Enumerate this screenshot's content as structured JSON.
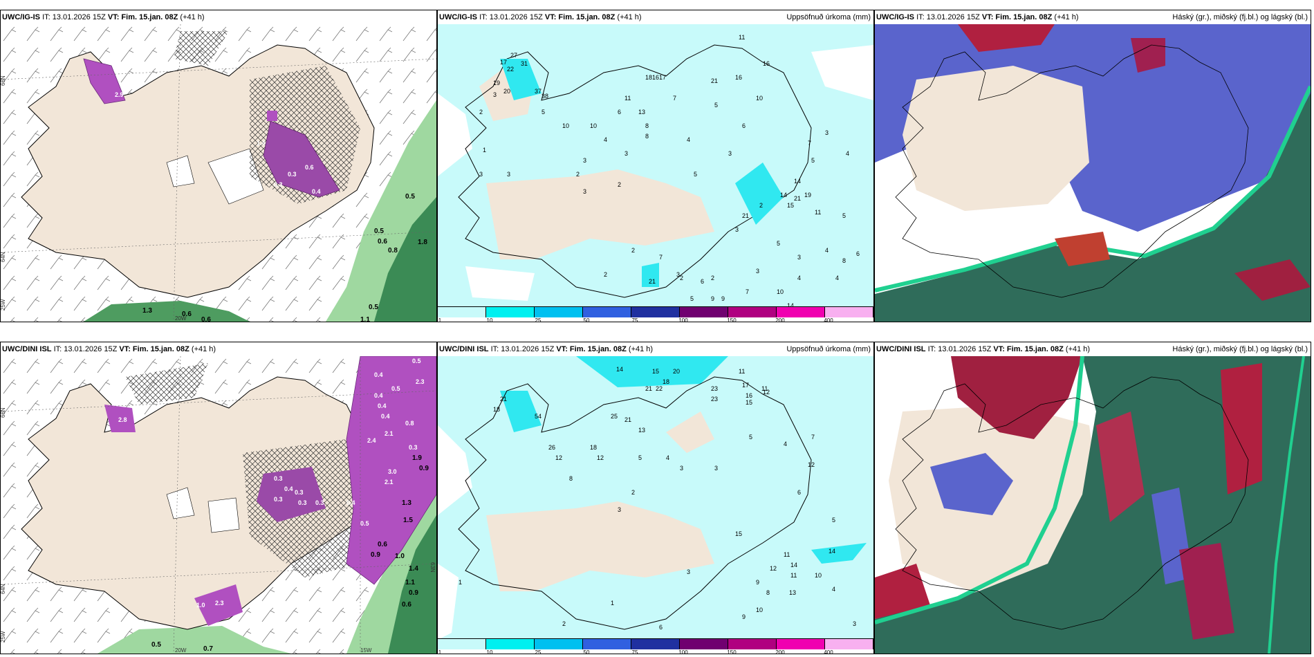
{
  "panels": [
    {
      "model": "UWC/IG-IS",
      "it": "IT: 13.01.2026 15Z",
      "vt_label": "VT:",
      "vt": "Fim. 15.jan. 08Z",
      "lead": "(+41 h)",
      "right_title": ""
    },
    {
      "model": "UWC/IG-IS",
      "it": "IT: 13.01.2026 15Z",
      "vt_label": "VT:",
      "vt": "Fim. 15.jan. 08Z",
      "lead": "(+41 h)",
      "right_title": "Uppsöfnuð úrkoma (mm)"
    },
    {
      "model": "UWC/IG-IS",
      "it": "IT: 13.01.2026 15Z",
      "vt_label": "VT:",
      "vt": "Fim. 15.jan. 08Z",
      "lead": "(+41 h)",
      "right_title": "Háský (gr.), miðský (fj.bl.) og lágský (bl.)"
    },
    {
      "model": "UWC/DINI ISL",
      "it": "IT: 13.01.2026 15Z",
      "vt_label": "VT:",
      "vt": "Fim. 15.jan. 08Z",
      "lead": "(+41 h)",
      "right_title": ""
    },
    {
      "model": "UWC/DINI ISL",
      "it": "IT: 13.01.2026 15Z",
      "vt_label": "VT:",
      "vt": "Fim. 15.jan. 08Z",
      "lead": "(+41 h)",
      "right_title": "Uppsöfnuð úrkoma (mm)"
    },
    {
      "model": "UWC/DINI ISL",
      "it": "IT: 13.01.2026 15Z",
      "vt_label": "VT:",
      "vt": "Fim. 15.jan. 08Z",
      "lead": "(+41 h)",
      "right_title": "Háský (gr.), miðský (fj.bl.) og lágský (bl.)"
    }
  ],
  "colorbar": {
    "levels": [
      "1",
      "10",
      "25",
      "50",
      "75",
      "100",
      "150",
      "200",
      "400"
    ],
    "colors": [
      "#c8fafa",
      "#00f0f0",
      "#00c0f0",
      "#3060e0",
      "#2030a0",
      "#700070",
      "#b00080",
      "#f000b0",
      "#f8b0f0"
    ]
  },
  "axis_labels": {
    "lat_66": "66N",
    "lat_64": "64N",
    "lat_63": "63N",
    "lon_25": "25W",
    "lon_20": "20W",
    "lon_15": "15W"
  },
  "panel1_values": [
    "2.9",
    "1.4",
    "0.3",
    "0.6",
    "0.3",
    "0.4",
    "0.5",
    "0.5",
    "0.6",
    "0.8",
    "1.8",
    "0.5",
    "1.3",
    "0.6",
    "0.6",
    "1.1"
  ],
  "panel2_values": [
    "11",
    "27",
    "22",
    "17",
    "19",
    "31",
    "20",
    "3",
    "37",
    "38",
    "2",
    "5",
    "10",
    "16",
    "17",
    "18",
    "21",
    "16",
    "13",
    "11",
    "6",
    "8",
    "7",
    "8",
    "5",
    "6",
    "10",
    "10",
    "4",
    "4",
    "3",
    "3",
    "2",
    "3",
    "2",
    "5",
    "14",
    "19",
    "14",
    "15",
    "21",
    "11",
    "21",
    "3",
    "2",
    "3",
    "3",
    "16",
    "7",
    "5",
    "2",
    "7",
    "21",
    "3",
    "2",
    "4",
    "3",
    "6",
    "8",
    "10",
    "14",
    "9",
    "6",
    "5",
    "9",
    "2",
    "2",
    "3",
    "5",
    "4",
    "7",
    "4",
    "4",
    "3",
    "1",
    "3",
    "5"
  ],
  "panel4_values": [
    "2.8",
    "0.5",
    "2.3",
    "0.4",
    "0.5",
    "0.4",
    "0.4",
    "0.4",
    "0.8",
    "2.1",
    "2.4",
    "0.3",
    "1.9",
    "0.9",
    "3.0",
    "2.1",
    "0.3",
    "0.4",
    "0.3",
    "0.3",
    "0.3",
    "0.3",
    "1.3",
    "0.4",
    "1.5",
    "0.5",
    "0.6",
    "0.9",
    "1.0",
    "1.4",
    "1.1",
    "0.9",
    "0.6",
    "1.0",
    "2.3",
    "0.5",
    "0.7"
  ],
  "panel5_values": [
    "14",
    "15",
    "20",
    "18",
    "11",
    "23",
    "21",
    "16",
    "23",
    "22",
    "11",
    "17",
    "15",
    "12",
    "21",
    "18",
    "54",
    "25",
    "21",
    "13",
    "26",
    "12",
    "18",
    "12",
    "8",
    "5",
    "4",
    "3",
    "3",
    "2",
    "3",
    "5",
    "4",
    "7",
    "12",
    "6",
    "14",
    "11",
    "14",
    "11",
    "10",
    "13",
    "9",
    "8",
    "12",
    "5",
    "15",
    "1",
    "1",
    "3",
    "2",
    "6",
    "10",
    "9",
    "4",
    "3"
  ],
  "colors": {
    "land": "#f2e6d8",
    "light_cyan": "#c8fafa",
    "cyan": "#30e8f0",
    "purple": "#a040b0",
    "pink": "#e0a0e8",
    "green_dark": "#2e7d4a",
    "green_light": "#b0e6b0",
    "cloud_blue": "#5060d0",
    "cloud_red": "#a02040",
    "cloud_teal": "#2f6c5a",
    "cloud_mint": "#20d090"
  }
}
